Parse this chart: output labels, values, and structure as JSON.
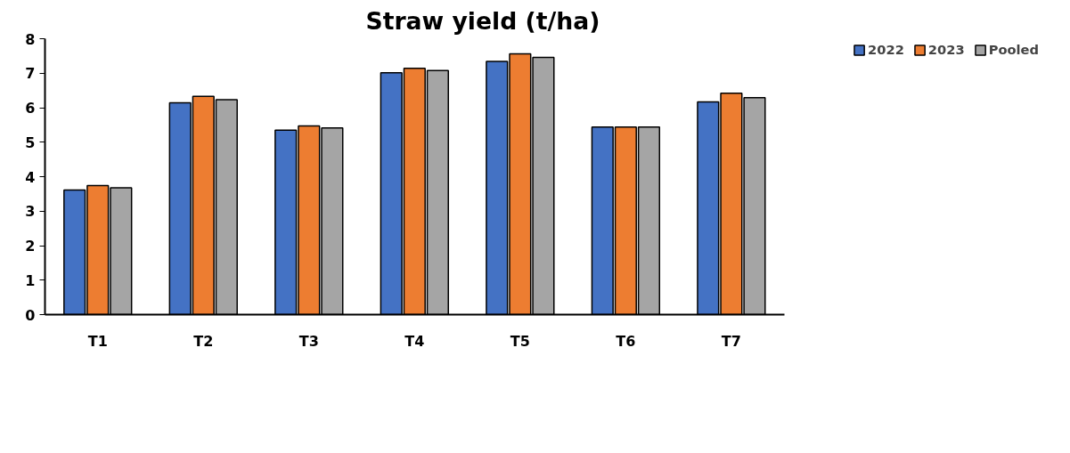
{
  "chart_data": {
    "type": "bar",
    "title": "Straw yield (t/ha)",
    "categories": [
      "T1",
      "T2",
      "T3",
      "T4",
      "T5",
      "T6",
      "T7"
    ],
    "series": [
      {
        "name": "2022",
        "color": "#4472c4",
        "values": [
          3.61,
          6.14,
          5.35,
          7.01,
          7.34,
          5.44,
          6.17
        ]
      },
      {
        "name": "2023",
        "color": "#ed7d31",
        "values": [
          3.74,
          6.33,
          5.47,
          7.14,
          7.56,
          5.44,
          6.42
        ]
      },
      {
        "name": "Pooled",
        "color": "#a5a5a5",
        "values": [
          3.68,
          6.23,
          5.41,
          7.08,
          7.46,
          5.44,
          6.29
        ]
      }
    ],
    "ylim": [
      0,
      8
    ],
    "yticks": [
      0,
      1,
      2,
      3,
      4,
      5,
      6,
      7,
      8
    ],
    "grid": false,
    "legend": "top right"
  }
}
